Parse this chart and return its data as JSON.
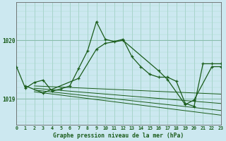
{
  "title": "Graphe pression niveau de la mer (hPa)",
  "background_color": "#cce8f0",
  "grid_color_major": "#99ccbb",
  "grid_color_minor": "#bbddcc",
  "line_color": "#1a5c1a",
  "xlim": [
    0,
    23
  ],
  "ylim": [
    1018.55,
    1020.65
  ],
  "yticks": [
    1019,
    1020
  ],
  "xticks": [
    0,
    1,
    2,
    3,
    4,
    5,
    6,
    7,
    8,
    9,
    10,
    11,
    12,
    13,
    14,
    15,
    16,
    17,
    18,
    19,
    20,
    21,
    22,
    23
  ],
  "series1_x": [
    0,
    1,
    2,
    3,
    4,
    5,
    6,
    7,
    8,
    9,
    10,
    11,
    12,
    13,
    14,
    15,
    16,
    17,
    18,
    19,
    20,
    21,
    22,
    23
  ],
  "series1_y": [
    1019.55,
    1019.18,
    1019.28,
    1019.32,
    1019.13,
    1019.17,
    1019.22,
    1019.52,
    1019.82,
    1020.32,
    1020.02,
    1019.98,
    1020.02,
    1019.72,
    1019.55,
    1019.42,
    1019.37,
    1019.37,
    1019.3,
    1018.92,
    1018.87,
    1019.6,
    1019.6,
    1019.6
  ],
  "series2_x": [
    1,
    3,
    7,
    9,
    10,
    12,
    16,
    17,
    19,
    20,
    22,
    23
  ],
  "series2_y": [
    1019.22,
    1019.1,
    1019.35,
    1019.85,
    1019.95,
    1020.0,
    1019.48,
    1019.33,
    1018.9,
    1018.98,
    1019.55,
    1019.55
  ],
  "diag_lines": [
    {
      "x": [
        2,
        23
      ],
      "y": [
        1019.22,
        1019.08
      ]
    },
    {
      "x": [
        2,
        23
      ],
      "y": [
        1019.18,
        1018.92
      ]
    },
    {
      "x": [
        2,
        23
      ],
      "y": [
        1019.15,
        1018.8
      ]
    },
    {
      "x": [
        2,
        23
      ],
      "y": [
        1019.12,
        1018.72
      ]
    }
  ]
}
